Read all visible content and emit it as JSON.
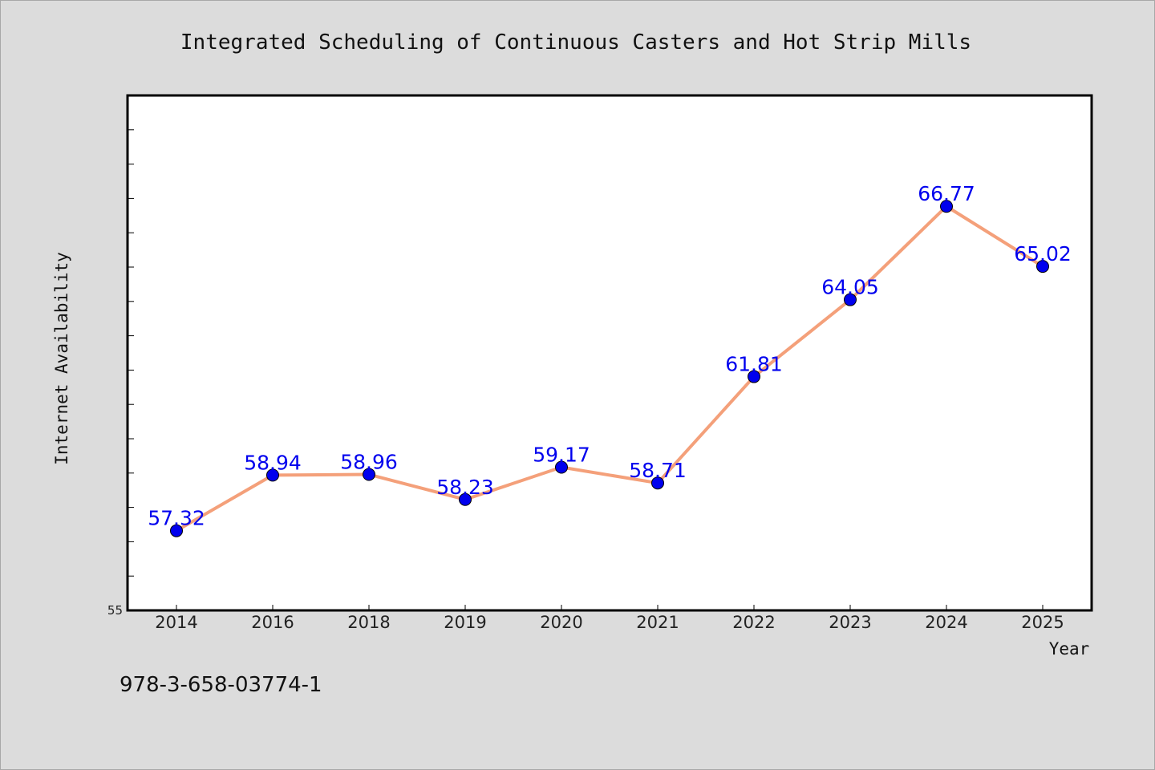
{
  "chart_data": {
    "type": "line",
    "title": "Integrated Scheduling of Continuous Casters and Hot Strip Mills",
    "xlabel": "Year",
    "ylabel": "Internet Availability",
    "categories": [
      "2014",
      "2016",
      "2018",
      "2019",
      "2020",
      "2021",
      "2022",
      "2023",
      "2024",
      "2025"
    ],
    "series": [
      {
        "values": [
          57.32,
          58.94,
          58.96,
          58.23,
          59.17,
          58.71,
          61.81,
          64.05,
          66.77,
          65.02
        ],
        "value_labels": [
          "57.32",
          "58.94",
          "58.96",
          "58.23",
          "59.17",
          "58.71",
          "61.81",
          "64.05",
          "66.77",
          "65.02"
        ],
        "line_color": "#f4a07a",
        "marker_color": "#0000ee"
      }
    ],
    "ylim": [
      55,
      70
    ],
    "y_tick_labels": [
      "55"
    ],
    "y_minor_tick_step": 1,
    "grid": false,
    "legend": "none"
  },
  "annotation": {
    "isbn": "978-3-658-03774-1"
  }
}
